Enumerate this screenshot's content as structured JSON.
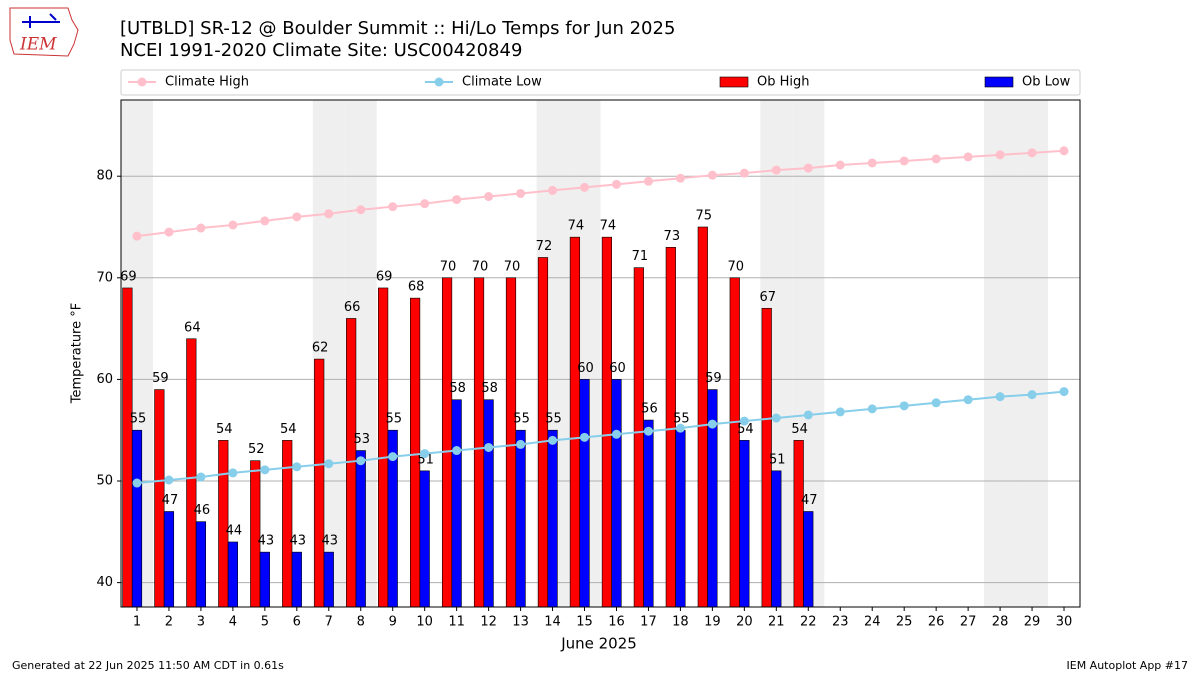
{
  "logo_text": "IEM",
  "footer_left": "Generated at 22 Jun 2025 11:50 AM CDT in 0.61s",
  "footer_right": "IEM Autoplot App #17",
  "chart_data": {
    "type": "bar",
    "title": "[UTBLD] SR-12 @ Boulder Summit  :: Hi/Lo Temps for Jun 2025",
    "subtitle": "NCEI 1991-2020 Climate Site: USC00420849",
    "xlabel": "June 2025",
    "ylabel": "Temperature °F",
    "x": [
      1,
      2,
      3,
      4,
      5,
      6,
      7,
      8,
      9,
      10,
      11,
      12,
      13,
      14,
      15,
      16,
      17,
      18,
      19,
      20,
      21,
      22,
      23,
      24,
      25,
      26,
      27,
      28,
      29,
      30
    ],
    "xlim": [
      0.5,
      30.5
    ],
    "ylim": [
      37.6,
      87.5
    ],
    "yticks": [
      40,
      50,
      60,
      70,
      80
    ],
    "grid": true,
    "legend": "top",
    "shaded_days": [
      1,
      7,
      8,
      14,
      15,
      21,
      22,
      28,
      29
    ],
    "shade_color": "#efefef",
    "series": [
      {
        "name": "Climate High",
        "kind": "line",
        "color": "#ffc0cb",
        "values": [
          74.1,
          74.5,
          74.9,
          75.2,
          75.6,
          76.0,
          76.3,
          76.7,
          77.0,
          77.3,
          77.7,
          78.0,
          78.3,
          78.6,
          78.9,
          79.2,
          79.5,
          79.8,
          80.1,
          80.3,
          80.6,
          80.8,
          81.1,
          81.3,
          81.5,
          81.7,
          81.9,
          82.1,
          82.3,
          82.5
        ]
      },
      {
        "name": "Climate Low",
        "kind": "line",
        "color": "#87ceeb",
        "values": [
          49.8,
          50.1,
          50.4,
          50.8,
          51.1,
          51.4,
          51.7,
          52.0,
          52.4,
          52.7,
          53.0,
          53.3,
          53.6,
          54.0,
          54.3,
          54.6,
          54.9,
          55.2,
          55.6,
          55.9,
          56.2,
          56.5,
          56.8,
          57.1,
          57.4,
          57.7,
          58.0,
          58.3,
          58.5,
          58.8
        ]
      },
      {
        "name": "Ob High",
        "kind": "bar",
        "color": "#ff0000",
        "values": [
          69,
          59,
          64,
          54,
          52,
          54,
          62,
          66,
          69,
          68,
          70,
          70,
          70,
          72,
          74,
          74,
          71,
          73,
          75,
          70,
          67,
          54,
          null,
          null,
          null,
          null,
          null,
          null,
          null,
          null
        ]
      },
      {
        "name": "Ob Low",
        "kind": "bar",
        "color": "#0000ff",
        "values": [
          55,
          47,
          46,
          44,
          43,
          43,
          43,
          53,
          55,
          51,
          58,
          58,
          55,
          55,
          60,
          60,
          56,
          55,
          59,
          54,
          51,
          47,
          null,
          null,
          null,
          null,
          null,
          null,
          null,
          null
        ]
      }
    ]
  }
}
